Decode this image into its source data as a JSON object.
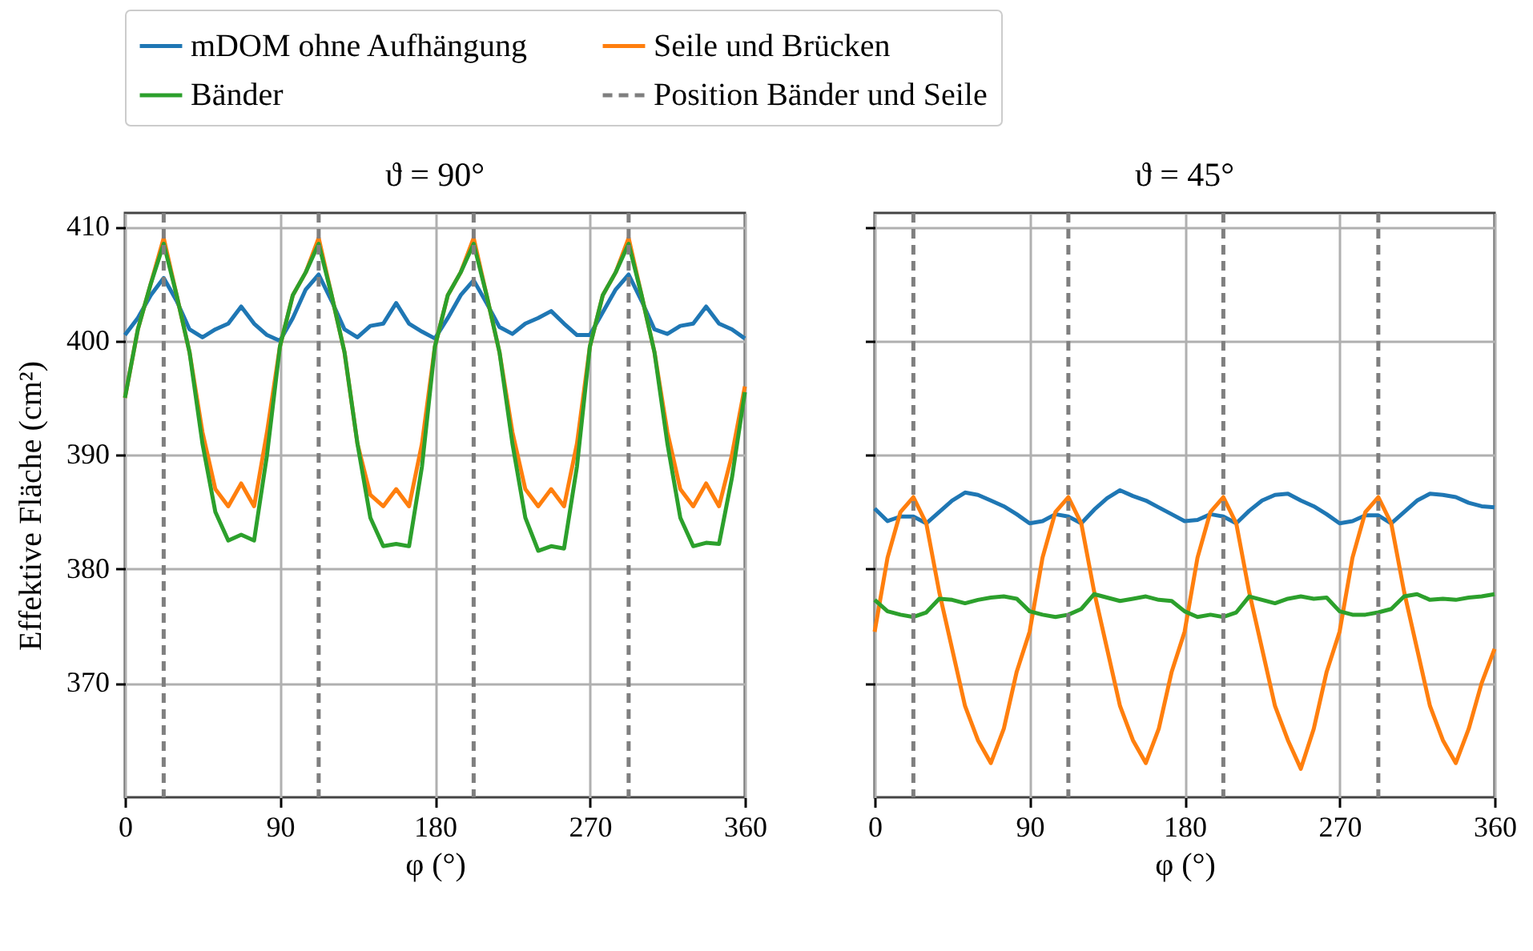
{
  "chart_data": [
    {
      "type": "line",
      "title": "ϑ = 90°",
      "xlabel": "φ (°)",
      "ylabel": "Effektive Fläche (cm²)",
      "x": [
        0,
        7.5,
        15,
        22.5,
        30,
        37.5,
        45,
        52.5,
        60,
        67.5,
        75,
        82.5,
        90,
        97.5,
        105,
        112.5,
        120,
        127.5,
        135,
        142.5,
        150,
        157.5,
        165,
        172.5,
        180,
        187.5,
        195,
        202.5,
        210,
        217.5,
        225,
        232.5,
        240,
        247.5,
        255,
        262.5,
        270,
        277.5,
        285,
        292.5,
        300,
        307.5,
        315,
        322.5,
        330,
        337.5,
        345,
        352.5,
        360
      ],
      "series": [
        {
          "name": "mDOM ohne Aufhängung",
          "color": "#1f77b4",
          "values": [
            400.5,
            402,
            404,
            405.5,
            403.5,
            401,
            400.3,
            401,
            401.5,
            403,
            401.5,
            400.5,
            400,
            402,
            404.5,
            405.8,
            403.5,
            401,
            400.3,
            401.3,
            401.5,
            403.3,
            401.5,
            400.8,
            400.2,
            402,
            404,
            405.3,
            403.3,
            401.2,
            400.6,
            401.5,
            402,
            402.6,
            401.5,
            400.5,
            400.5,
            402.5,
            404.5,
            405.8,
            403.5,
            401,
            400.6,
            401.3,
            401.5,
            403,
            401.5,
            401,
            400.2
          ]
        },
        {
          "name": "Seile und Brücken",
          "color": "#ff7f0e",
          "values": [
            395,
            401,
            405,
            409,
            404,
            399,
            392,
            387,
            385.5,
            387.5,
            385.5,
            392,
            399.5,
            404,
            406,
            409,
            404,
            399,
            391,
            386.5,
            385.5,
            387,
            385.5,
            391,
            399.5,
            404,
            406,
            409,
            404,
            399,
            392,
            387,
            385.5,
            387,
            385.5,
            391,
            399.5,
            404,
            406,
            409,
            404,
            399,
            392,
            387,
            385.5,
            387.5,
            385.5,
            390,
            396
          ]
        },
        {
          "name": "Bänder",
          "color": "#2ca02c",
          "values": [
            395,
            401,
            405,
            408.5,
            404,
            399,
            391,
            385,
            382.5,
            383,
            382.5,
            390,
            399.5,
            404,
            406,
            408.5,
            404,
            399,
            391,
            384.5,
            382,
            382.2,
            382,
            389,
            399.5,
            404,
            406,
            408.5,
            404,
            399,
            391,
            384.5,
            381.6,
            382,
            381.8,
            389,
            399.5,
            404,
            406,
            408.5,
            404,
            399,
            391,
            384.5,
            382,
            382.3,
            382.2,
            388,
            395.5
          ]
        }
      ],
      "xlim": [
        0,
        360
      ],
      "xticks": [
        0,
        90,
        180,
        270,
        360
      ],
      "ylim": [
        360,
        411.2
      ],
      "yticks": [
        370,
        380,
        390,
        400,
        410
      ],
      "grid": true,
      "legend": "top",
      "ref_lines": [
        {
          "axis": "x",
          "value": 22.5,
          "label": "Position Bänder und Seile",
          "color": "#7f7f7f",
          "line_style": "dashed"
        },
        {
          "axis": "x",
          "value": 112.5,
          "color": "#7f7f7f",
          "line_style": "dashed"
        },
        {
          "axis": "x",
          "value": 202.5,
          "color": "#7f7f7f",
          "line_style": "dashed"
        },
        {
          "axis": "x",
          "value": 292.5,
          "color": "#7f7f7f",
          "line_style": "dashed"
        }
      ]
    },
    {
      "type": "line",
      "title": "ϑ = 45°",
      "xlabel": "φ (°)",
      "x": [
        0,
        7.5,
        15,
        22.5,
        30,
        37.5,
        45,
        52.5,
        60,
        67.5,
        75,
        82.5,
        90,
        97.5,
        105,
        112.5,
        120,
        127.5,
        135,
        142.5,
        150,
        157.5,
        165,
        172.5,
        180,
        187.5,
        195,
        202.5,
        210,
        217.5,
        225,
        232.5,
        240,
        247.5,
        255,
        262.5,
        270,
        277.5,
        285,
        292.5,
        300,
        307.5,
        315,
        322.5,
        330,
        337.5,
        345,
        352.5,
        360
      ],
      "series": [
        {
          "name": "mDOM ohne Aufhängung",
          "color": "#1f77b4",
          "values": [
            385.3,
            384.2,
            384.6,
            384.6,
            384,
            385,
            386,
            386.7,
            386.5,
            386,
            385.5,
            384.8,
            384,
            384.2,
            384.8,
            384.6,
            384,
            385.2,
            386.2,
            386.9,
            386.4,
            386,
            385.4,
            384.8,
            384.2,
            384.3,
            384.8,
            384.6,
            384,
            385.1,
            386,
            386.5,
            386.6,
            386,
            385.5,
            384.8,
            384,
            384.2,
            384.7,
            384.7,
            384,
            385,
            386,
            386.6,
            386.5,
            386.3,
            385.8,
            385.5,
            385.4
          ]
        },
        {
          "name": "Seile und Brücken",
          "color": "#ff7f0e",
          "values": [
            374.5,
            381,
            385,
            386.3,
            384,
            378,
            373,
            368,
            365,
            363,
            366,
            371,
            374.5,
            381,
            385,
            386.3,
            384,
            378,
            373,
            368,
            365,
            363,
            366,
            371,
            374.5,
            381,
            385,
            386.3,
            384,
            378,
            373,
            368,
            365,
            362.5,
            366,
            371,
            374.5,
            381,
            385,
            386.3,
            384,
            378,
            373,
            368,
            365,
            363,
            366,
            370,
            373
          ]
        },
        {
          "name": "Bänder",
          "color": "#2ca02c",
          "values": [
            377.3,
            376.3,
            376,
            375.8,
            376.2,
            377.4,
            377.3,
            377,
            377.3,
            377.5,
            377.6,
            377.4,
            376.3,
            376,
            375.8,
            376,
            376.5,
            377.8,
            377.5,
            377.2,
            377.4,
            377.6,
            377.3,
            377.2,
            376.3,
            375.8,
            376,
            375.8,
            376.2,
            377.6,
            377.3,
            377,
            377.4,
            377.6,
            377.4,
            377.5,
            376.3,
            376,
            376,
            376.2,
            376.5,
            377.6,
            377.8,
            377.3,
            377.4,
            377.3,
            377.5,
            377.6,
            377.8
          ]
        }
      ],
      "xlim": [
        0,
        360
      ],
      "xticks": [
        0,
        90,
        180,
        270,
        360
      ],
      "ylim": [
        360,
        411.2
      ],
      "yticks": [
        370,
        380,
        390,
        400,
        410
      ],
      "grid": true,
      "tick_labels": "x",
      "ref_lines": [
        {
          "axis": "x",
          "value": 22.5,
          "color": "#7f7f7f",
          "line_style": "dashed"
        },
        {
          "axis": "x",
          "value": 112.5,
          "color": "#7f7f7f",
          "line_style": "dashed"
        },
        {
          "axis": "x",
          "value": 202.5,
          "color": "#7f7f7f",
          "line_style": "dashed"
        },
        {
          "axis": "x",
          "value": 292.5,
          "color": "#7f7f7f",
          "line_style": "dashed"
        }
      ]
    }
  ]
}
